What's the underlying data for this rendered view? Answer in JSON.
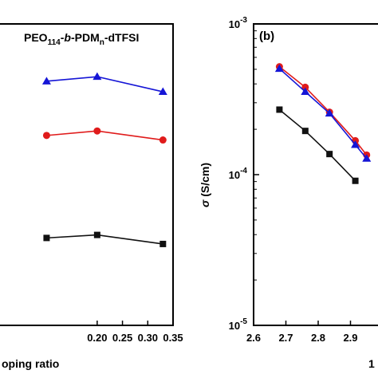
{
  "chart_data": [
    {
      "panel": "left",
      "type": "line",
      "annotation": {
        "main": "PEO",
        "sub1": "114",
        "mid": "-",
        "italic": "b",
        "mid2": "-PDM",
        "sub2": "n",
        "tail": "-dTFSI"
      },
      "xlabel": "oping ratio",
      "ylabel": "",
      "xlim": [
        0.0,
        0.35
      ],
      "ylim": [
        0,
        10
      ],
      "x_ticks": [
        {
          "v": 0.2,
          "label": "0.20"
        },
        {
          "v": 0.25,
          "label": "0.25"
        },
        {
          "v": 0.3,
          "label": "0.30"
        },
        {
          "v": 0.35,
          "label": "0.35"
        }
      ],
      "x": [
        0.1,
        0.2,
        0.33
      ],
      "series": [
        {
          "color": "#1515d6",
          "marker": "triangle",
          "x": [
            0.1,
            0.2,
            0.33
          ],
          "values": [
            8.1,
            8.25,
            7.75
          ]
        },
        {
          "color": "#e01b1b",
          "marker": "circle",
          "x": [
            0.1,
            0.2,
            0.33
          ],
          "values": [
            6.3,
            6.45,
            6.15
          ]
        },
        {
          "color": "#111111",
          "marker": "square",
          "x": [
            0.1,
            0.2,
            0.33
          ],
          "values": [
            2.9,
            3.0,
            2.7
          ]
        }
      ]
    },
    {
      "panel": "right",
      "type": "line",
      "panel_label": "(b)",
      "xlabel": "1",
      "ylabel": "σ (S/cm)",
      "ylabel_sym": "σ",
      "ylabel_rest": " (S/cm)",
      "xlim": [
        2.6,
        3.0
      ],
      "ylim": [
        1e-05,
        0.001
      ],
      "yscale": "log",
      "x_ticks": [
        {
          "v": 2.6,
          "label": "2.6"
        },
        {
          "v": 2.7,
          "label": "2.7"
        },
        {
          "v": 2.8,
          "label": "2.8"
        },
        {
          "v": 2.9,
          "label": "2.9"
        }
      ],
      "y_ticks": [
        {
          "v": 1e-05,
          "base": "10",
          "exp": "-5"
        },
        {
          "v": 0.0001,
          "base": "10",
          "exp": "-4"
        },
        {
          "v": 0.001,
          "base": "10",
          "exp": "-3"
        }
      ],
      "series": [
        {
          "color": "#e01b1b",
          "marker": "circle",
          "x": [
            2.68,
            2.76,
            2.835,
            2.915,
            2.95
          ],
          "values": [
            0.00052,
            0.00038,
            0.00026,
            0.000168,
            0.000135
          ]
        },
        {
          "color": "#1515d6",
          "marker": "triangle",
          "x": [
            2.68,
            2.76,
            2.835,
            2.915,
            2.95
          ],
          "values": [
            0.000505,
            0.000355,
            0.000255,
            0.000158,
            0.000128
          ]
        },
        {
          "color": "#111111",
          "marker": "square",
          "x": [
            2.68,
            2.76,
            2.835,
            2.915
          ],
          "values": [
            0.00027,
            0.000195,
            0.000137,
            9.1e-05
          ]
        }
      ]
    }
  ]
}
